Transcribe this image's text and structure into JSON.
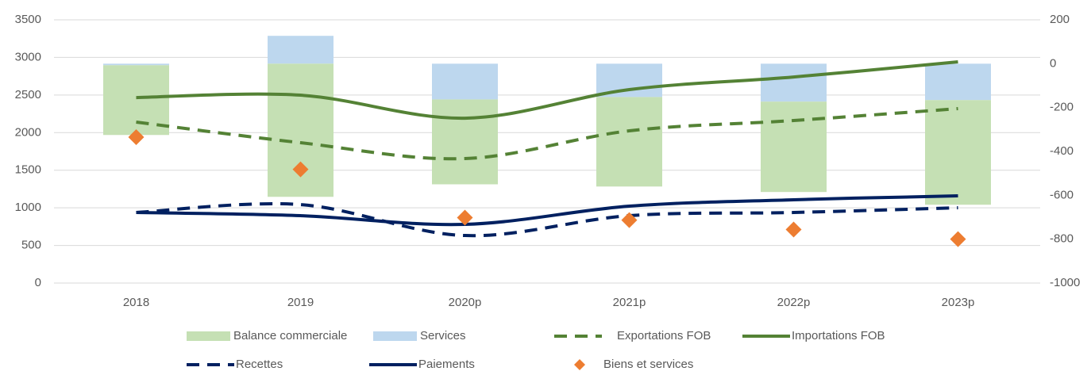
{
  "chart_data": {
    "type": "combo",
    "categories": [
      "2018",
      "2019",
      "2020p",
      "2021p",
      "2022p",
      "2023p"
    ],
    "ylim": [
      0,
      3500
    ],
    "yticks": [
      0,
      500,
      1000,
      1500,
      2000,
      2500,
      3000,
      3500
    ],
    "y2lim": [
      -1000,
      200
    ],
    "y2ticks": [
      -1000,
      -800,
      -600,
      -400,
      -200,
      0,
      200
    ],
    "grid": true,
    "series": [
      {
        "name": "Balance commerciale",
        "type": "bar",
        "axis": "y2",
        "color": "#c5e0b4",
        "values": [
          -318,
          -607,
          -387,
          -408,
          -412,
          -477
        ]
      },
      {
        "name": "Services",
        "type": "bar",
        "axis": "y2",
        "color": "#bdd7ee",
        "values": [
          -7,
          127,
          -163,
          -152,
          -173,
          -166
        ]
      },
      {
        "name": "Exportations FOB",
        "type": "line",
        "dashed": true,
        "color": "#548235",
        "values": [
          2140,
          1866,
          1655,
          2024,
          2161,
          2319
        ]
      },
      {
        "name": "Importations FOB",
        "type": "line",
        "dashed": false,
        "color": "#548235",
        "values": [
          2466,
          2498,
          2192,
          2572,
          2740,
          2941
        ]
      },
      {
        "name": "Recettes",
        "type": "line",
        "dashed": true,
        "color": "#002060",
        "values": [
          938,
          1043,
          632,
          896,
          938,
          1001
        ]
      },
      {
        "name": "Paiements",
        "type": "line",
        "dashed": false,
        "color": "#002060",
        "values": [
          938,
          896,
          780,
          1022,
          1107,
          1159
        ]
      },
      {
        "name": "Biens et services",
        "type": "scatter",
        "axis": "y2",
        "color": "#ed7d31",
        "values": [
          -335,
          -482,
          -702,
          -713,
          -756,
          -800
        ]
      }
    ]
  }
}
